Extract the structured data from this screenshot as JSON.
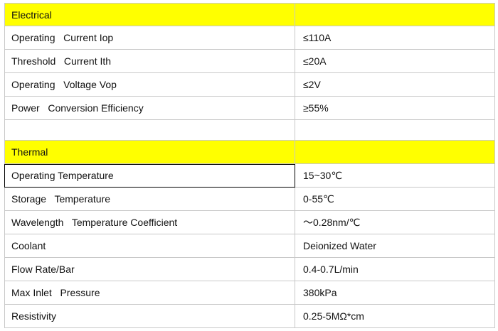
{
  "sections": [
    {
      "title": "Electrical",
      "rows": [
        [
          "Operating   Current Iop",
          "≤110A"
        ],
        [
          "Threshold   Current Ith",
          "≤20A"
        ],
        [
          "Operating   Voltage Vop",
          "≤2V"
        ],
        [
          "Power   Conversion Efficiency",
          "≥55%"
        ]
      ]
    },
    {
      "title": "Thermal",
      "rows": [
        [
          "Operating Temperature",
          "15~30℃"
        ],
        [
          "Storage   Temperature",
          "0-55℃"
        ],
        [
          "Wavelength   Temperature Coefficient",
          "～0.28nm/℃"
        ],
        [
          "Coolant",
          "Deionized Water"
        ],
        [
          "Flow Rate/Bar",
          "0.4-0.7L/min"
        ],
        [
          "Max Inlet   Pressure",
          "380kPa"
        ],
        [
          "Resistivity",
          "0.25-5MΩ*cm"
        ]
      ]
    }
  ]
}
